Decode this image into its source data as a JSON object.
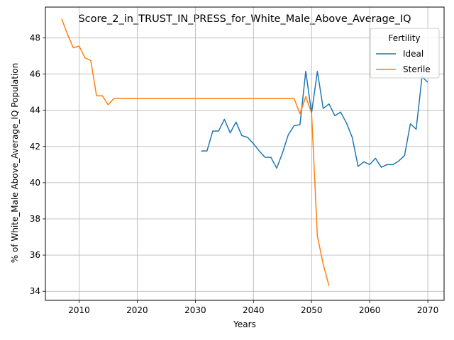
{
  "chart_data": {
    "type": "line",
    "title": "Score_2_in_TRUST_IN_PRESS_for_White_Male_Above_Average_IQ",
    "xlabel": "Years",
    "ylabel": "% of White_Male Above_Average_IQ Population",
    "xlim": [
      2004.2,
      2072.8
    ],
    "ylim": [
      33.5,
      49.7
    ],
    "xticks": [
      2010,
      2020,
      2030,
      2040,
      2050,
      2060,
      2070
    ],
    "yticks": [
      34,
      36,
      38,
      40,
      42,
      44,
      46,
      48
    ],
    "grid": true,
    "legend": {
      "title": "Fertility",
      "position": "top-right"
    },
    "series": [
      {
        "name": "Ideal",
        "color": "#1f77b4",
        "x": [
          2031,
          2032,
          2033,
          2034,
          2035,
          2036,
          2037,
          2038,
          2039,
          2040,
          2041,
          2042,
          2043,
          2044,
          2045,
          2046,
          2047,
          2048,
          2049,
          2050,
          2051,
          2052,
          2053,
          2054,
          2055,
          2056,
          2057,
          2058,
          2059,
          2060,
          2061,
          2062,
          2063,
          2064,
          2065,
          2066,
          2067,
          2068,
          2069,
          2070
        ],
        "y": [
          41.75,
          41.75,
          42.85,
          42.85,
          43.5,
          42.75,
          43.35,
          42.6,
          42.5,
          42.15,
          41.75,
          41.4,
          41.4,
          40.8,
          41.65,
          42.65,
          43.15,
          43.2,
          46.15,
          43.85,
          46.15,
          44.1,
          44.35,
          43.7,
          43.9,
          43.3,
          42.5,
          40.9,
          41.15,
          41.0,
          41.35,
          40.85,
          41.0,
          41.0,
          41.2,
          41.5,
          43.25,
          42.95,
          45.85,
          45.55
        ]
      },
      {
        "name": "Sterile",
        "color": "#ff7f0e",
        "x": [
          2007,
          2008,
          2009,
          2010,
          2011,
          2012,
          2013,
          2014,
          2015,
          2016,
          2017,
          2018,
          2019,
          2020,
          2021,
          2022,
          2023,
          2024,
          2025,
          2026,
          2027,
          2028,
          2029,
          2030,
          2031,
          2032,
          2033,
          2034,
          2035,
          2036,
          2037,
          2038,
          2039,
          2040,
          2041,
          2042,
          2043,
          2044,
          2045,
          2046,
          2047,
          2048,
          2049,
          2050,
          2051,
          2052,
          2053
        ],
        "y": [
          49.05,
          48.2,
          47.45,
          47.55,
          46.9,
          46.75,
          44.8,
          44.8,
          44.3,
          44.65,
          44.65,
          44.65,
          44.65,
          44.65,
          44.65,
          44.65,
          44.65,
          44.65,
          44.65,
          44.65,
          44.65,
          44.65,
          44.65,
          44.65,
          44.65,
          44.65,
          44.65,
          44.65,
          44.65,
          44.65,
          44.65,
          44.65,
          44.65,
          44.65,
          44.65,
          44.65,
          44.65,
          44.65,
          44.65,
          44.65,
          44.65,
          43.8,
          44.75,
          43.85,
          37.05,
          35.5,
          34.3
        ]
      }
    ]
  }
}
